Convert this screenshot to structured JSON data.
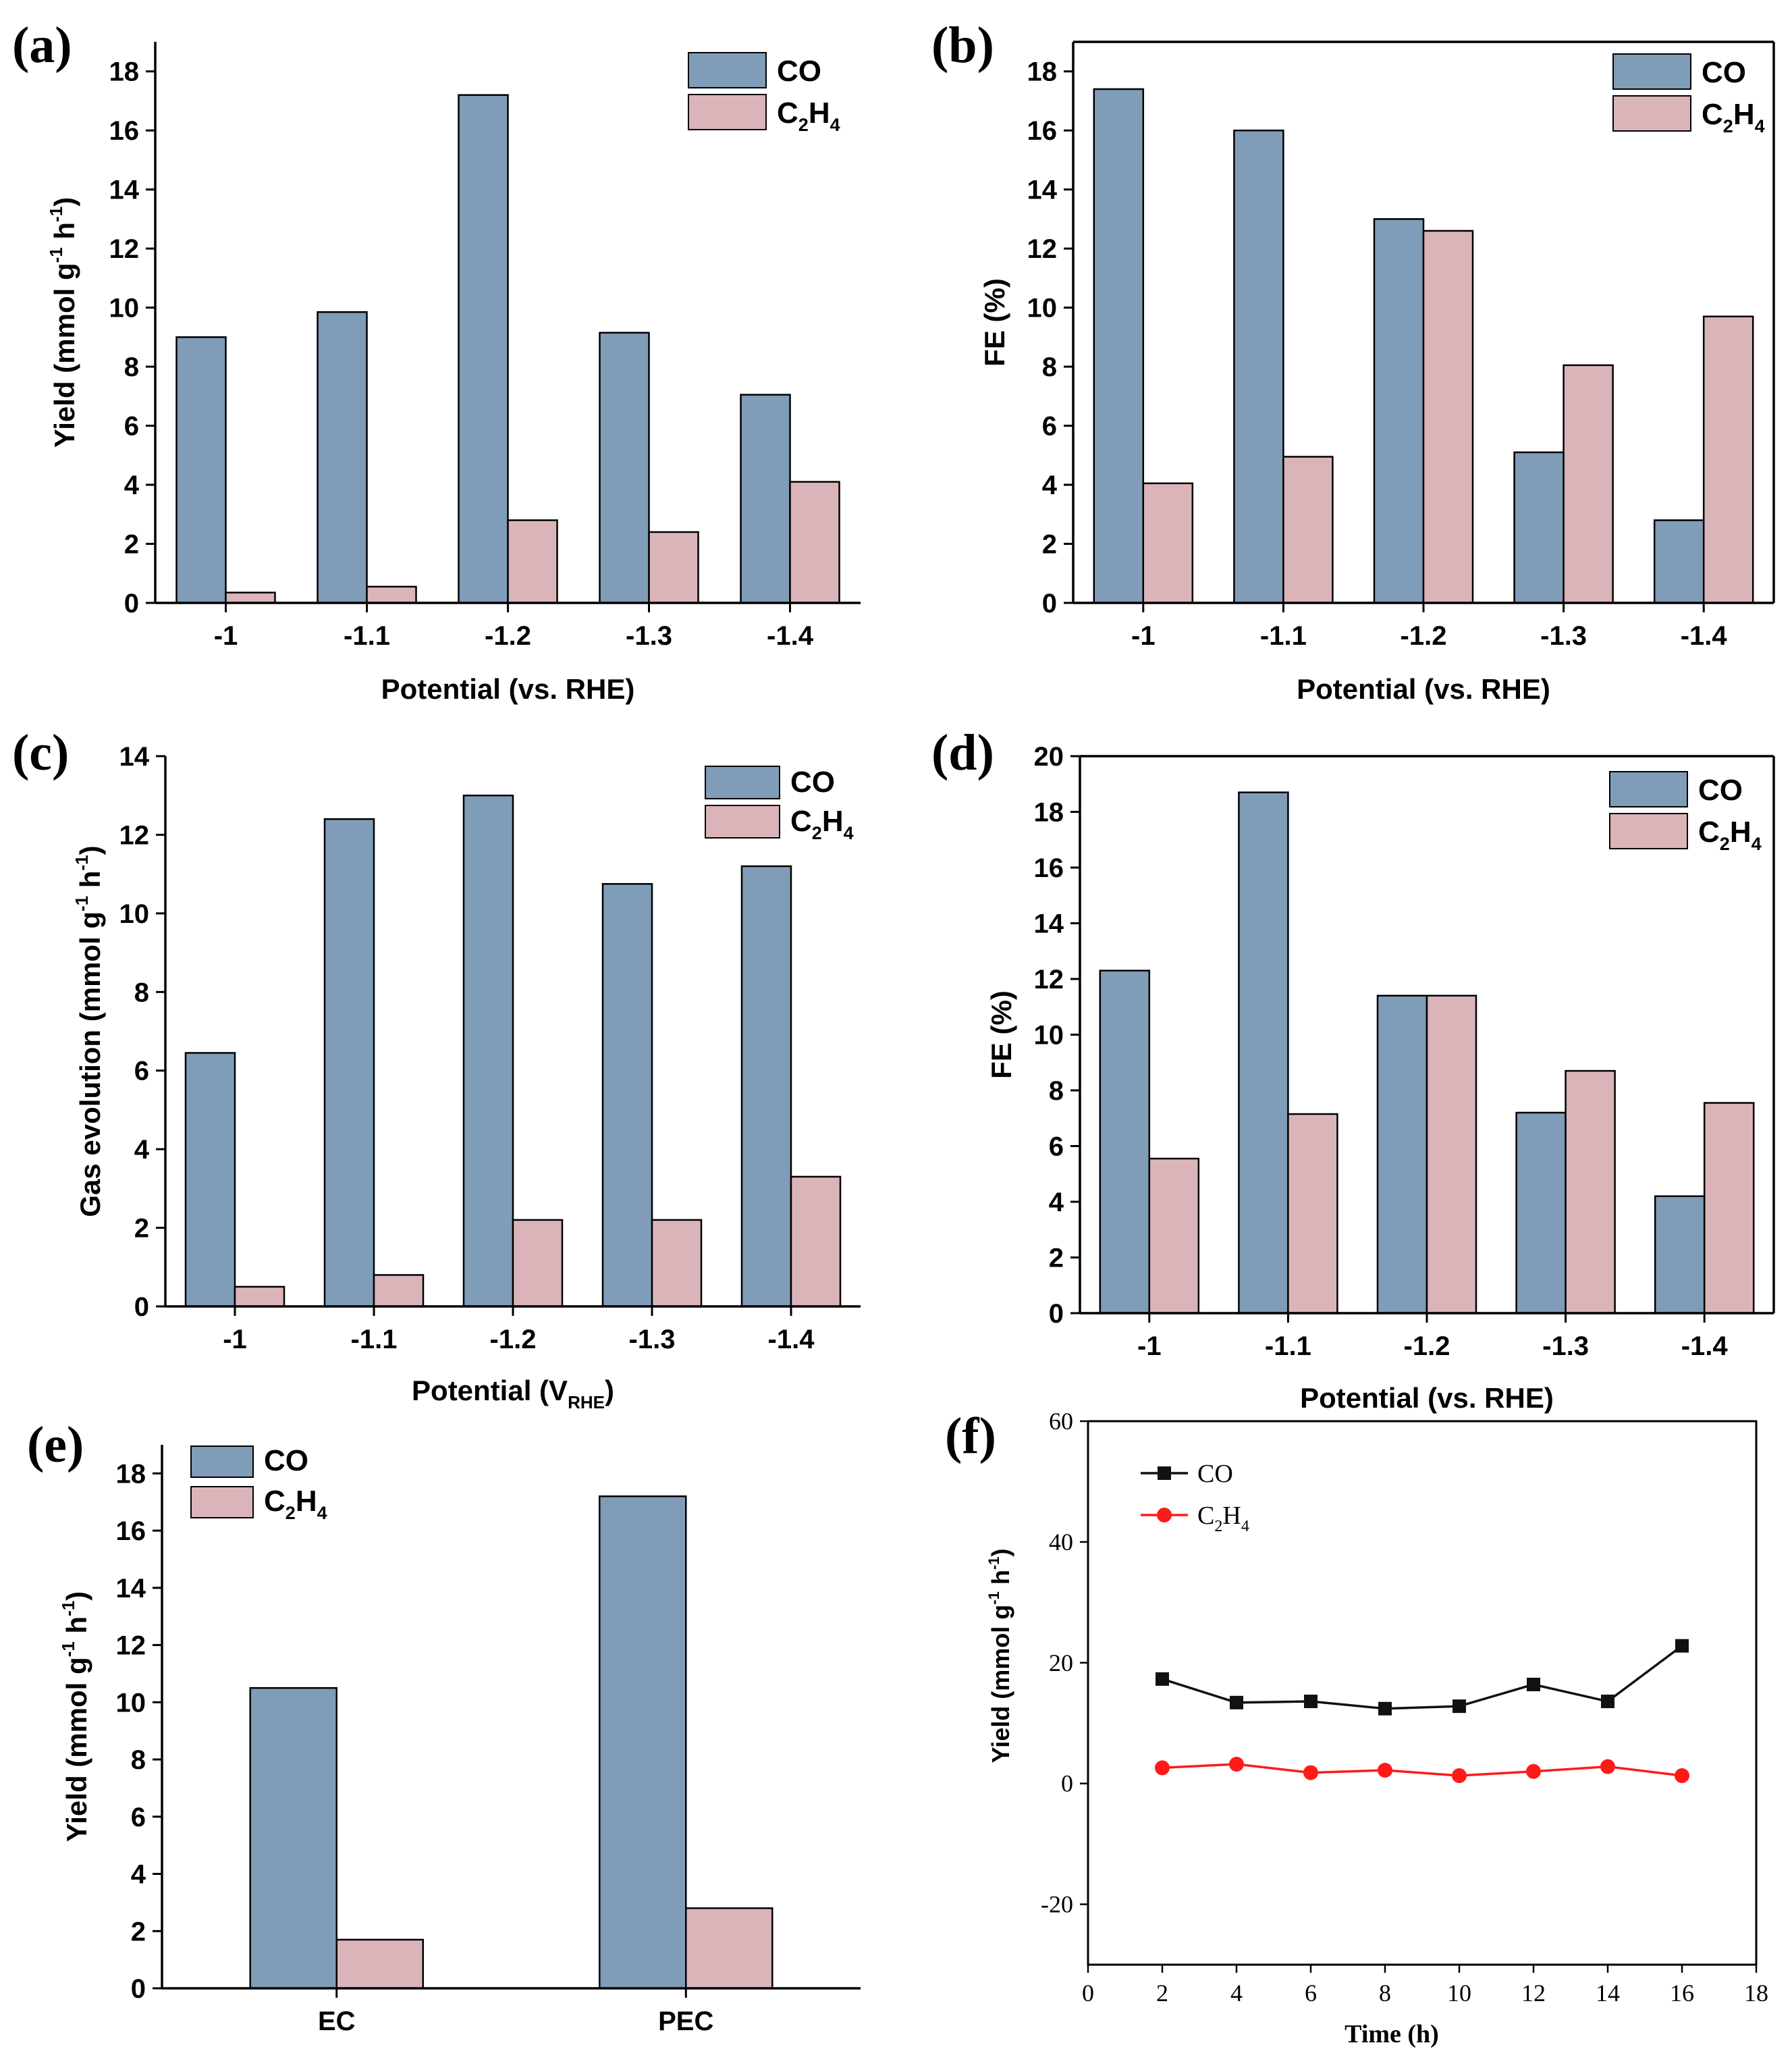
{
  "colors": {
    "co_bar": "#7f9cb8",
    "c2h4_bar": "#dbb4ba",
    "co_line": "#111111",
    "c2h4_line": "#ff1a1a",
    "axis": "#000000"
  },
  "chart_data": [
    {
      "panel": "(a)",
      "type": "bar",
      "categories": [
        "-1",
        "-1.1",
        "-1.2",
        "-1.3",
        "-1.4"
      ],
      "series": [
        {
          "name": "CO",
          "values": [
            9.0,
            9.85,
            17.2,
            9.15,
            7.05
          ]
        },
        {
          "name": "C2H4",
          "values": [
            0.35,
            0.55,
            2.8,
            2.4,
            4.1
          ]
        }
      ],
      "legend": [
        {
          "main": "CO",
          "sub1": "",
          "mid": "",
          "sub2": ""
        },
        {
          "main": "C",
          "sub1": "2",
          "mid": "H",
          "sub2": "4"
        }
      ],
      "xlabel": "Potential (vs. RHE)",
      "ylabel": "Yield (mmol g-1 h-1)",
      "ylabel_parts": {
        "main": "Yield (mmol g",
        "sup1": "-1",
        "mid": " h",
        "sup2": "-1",
        "end": ")"
      },
      "ylim": [
        0,
        19
      ],
      "yticks": [
        0,
        2,
        4,
        6,
        8,
        10,
        12,
        14,
        16,
        18
      ]
    },
    {
      "panel": "(b)",
      "type": "bar",
      "categories": [
        "-1",
        "-1.1",
        "-1.2",
        "-1.3",
        "-1.4"
      ],
      "series": [
        {
          "name": "CO",
          "values": [
            17.4,
            16.0,
            13.0,
            5.1,
            2.8
          ]
        },
        {
          "name": "C2H4",
          "values": [
            4.05,
            4.95,
            12.6,
            8.05,
            9.7
          ]
        }
      ],
      "legend": [
        {
          "main": "CO",
          "sub1": "",
          "mid": "",
          "sub2": ""
        },
        {
          "main": "C",
          "sub1": "2",
          "mid": "H",
          "sub2": "4"
        }
      ],
      "xlabel": "Potential (vs. RHE)",
      "ylabel": "FE (%)",
      "ylabel_parts": {
        "main": "FE (%)",
        "sup1": "",
        "mid": "",
        "sup2": "",
        "end": ""
      },
      "ylim": [
        0,
        19
      ],
      "yticks": [
        0,
        2,
        4,
        6,
        8,
        10,
        12,
        14,
        16,
        18
      ]
    },
    {
      "panel": "(c)",
      "type": "bar",
      "categories": [
        "-1",
        "-1.1",
        "-1.2",
        "-1.3",
        "-1.4"
      ],
      "series": [
        {
          "name": "CO",
          "values": [
            6.45,
            12.4,
            13.0,
            10.75,
            11.2
          ]
        },
        {
          "name": "C2H4",
          "values": [
            0.5,
            0.8,
            2.2,
            2.2,
            3.3
          ]
        }
      ],
      "legend": [
        {
          "main": "CO",
          "sub1": "",
          "mid": "",
          "sub2": ""
        },
        {
          "main": "C",
          "sub1": "2",
          "mid": "H",
          "sub2": "4"
        }
      ],
      "xlabel": "Potential (VRHE)",
      "xlabel_parts": {
        "main": "Potential (V",
        "sub": "RHE",
        "end": ")"
      },
      "ylabel": "Gas evolution (mmol g-1 h-1)",
      "ylabel_parts": {
        "main": "Gas evolution (mmol g",
        "sup1": "-1",
        "mid": " h",
        "sup2": "-1",
        "end": ")"
      },
      "ylim": [
        0,
        14
      ],
      "yticks": [
        0,
        2,
        4,
        6,
        8,
        10,
        12,
        14
      ]
    },
    {
      "panel": "(d)",
      "type": "bar",
      "categories": [
        "-1",
        "-1.1",
        "-1.2",
        "-1.3",
        "-1.4"
      ],
      "series": [
        {
          "name": "CO",
          "values": [
            12.3,
            18.7,
            11.4,
            7.2,
            4.2
          ]
        },
        {
          "name": "C2H4",
          "values": [
            5.55,
            7.15,
            11.4,
            8.7,
            7.55
          ]
        }
      ],
      "legend": [
        {
          "main": "CO",
          "sub1": "",
          "mid": "",
          "sub2": ""
        },
        {
          "main": "C",
          "sub1": "2",
          "mid": "H",
          "sub2": "4"
        }
      ],
      "xlabel": "Potential (vs. RHE)",
      "ylabel": "FE (%)",
      "ylabel_parts": {
        "main": "FE (%)",
        "sup1": "",
        "mid": "",
        "sup2": "",
        "end": ""
      },
      "ylim": [
        0,
        20
      ],
      "yticks": [
        0,
        2,
        4,
        6,
        8,
        10,
        12,
        14,
        16,
        18,
        20
      ]
    },
    {
      "panel": "(e)",
      "type": "bar",
      "categories": [
        "EC",
        "PEC"
      ],
      "series": [
        {
          "name": "CO",
          "values": [
            10.5,
            17.2
          ]
        },
        {
          "name": "C2H4",
          "values": [
            1.7,
            2.8
          ]
        }
      ],
      "legend": [
        {
          "main": "CO",
          "sub1": "",
          "mid": "",
          "sub2": ""
        },
        {
          "main": "C",
          "sub1": "2",
          "mid": "H",
          "sub2": "4"
        }
      ],
      "xlabel": "",
      "ylabel": "Yield (mmol g-1 h-1)",
      "ylabel_parts": {
        "main": "Yield (mmol g",
        "sup1": "-1",
        "mid": " h",
        "sup2": "-1",
        "end": ")"
      },
      "ylim": [
        0,
        19
      ],
      "yticks": [
        0,
        2,
        4,
        6,
        8,
        10,
        12,
        14,
        16,
        18
      ]
    },
    {
      "panel": "(f)",
      "type": "line",
      "x": [
        2,
        4,
        6,
        8,
        10,
        12,
        14,
        16
      ],
      "series": [
        {
          "name": "CO",
          "values": [
            17.3,
            13.4,
            13.6,
            12.4,
            12.8,
            16.4,
            13.6,
            22.8
          ]
        },
        {
          "name": "C2H4",
          "values": [
            2.6,
            3.2,
            1.8,
            2.2,
            1.3,
            2.0,
            2.8,
            1.3
          ]
        }
      ],
      "legend": [
        {
          "main": "CO",
          "sub1": "",
          "mid": "",
          "sub2": ""
        },
        {
          "main": "C",
          "sub1": "2",
          "mid": "H",
          "sub2": "4"
        }
      ],
      "xlabel": "Time (h)",
      "ylabel": "Yield (mmol g-1 h-1)",
      "ylabel_parts": {
        "main": "Yield (mmol g",
        "sup1": "-1",
        "mid": " h",
        "sup2": "-1",
        "end": ")"
      },
      "xlim": [
        0,
        18
      ],
      "xticks": [
        0,
        2,
        4,
        6,
        8,
        10,
        12,
        14,
        16,
        18
      ],
      "ylim": [
        -30,
        60
      ],
      "yticks": [
        -20,
        0,
        20,
        40,
        60
      ]
    }
  ]
}
